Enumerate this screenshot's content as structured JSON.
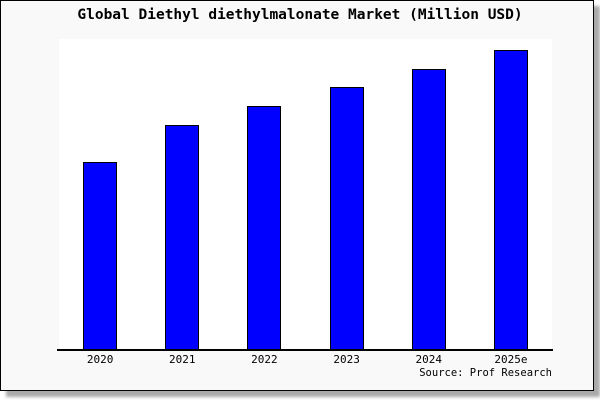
{
  "title": "Global Diethyl diethylmalonate Market (Million USD)",
  "source": {
    "label": "Source: Prof Research"
  },
  "colors": {
    "bar_fill": "#0000ff",
    "bar_border": "#000000",
    "canvas_background": "#f9f9f9",
    "plot_background": "#ffffff",
    "axis": "#000000",
    "text": "#000000"
  },
  "chart_data": {
    "type": "bar",
    "title": "Global Diethyl diethylmalonate Market (Million USD)",
    "categories": [
      "2020",
      "2021",
      "2022",
      "2023",
      "2024",
      "2025e"
    ],
    "values": [
      62.7,
      75.0,
      81.3,
      87.7,
      93.7,
      100.0
    ],
    "xlabel": "",
    "ylabel": "",
    "ylim": [
      0,
      103.7
    ],
    "value_note": "y-axis has no tick labels; values are relative estimates with 2025e bar = 100",
    "grid": false,
    "y_axis_visible": false,
    "legend": false
  }
}
